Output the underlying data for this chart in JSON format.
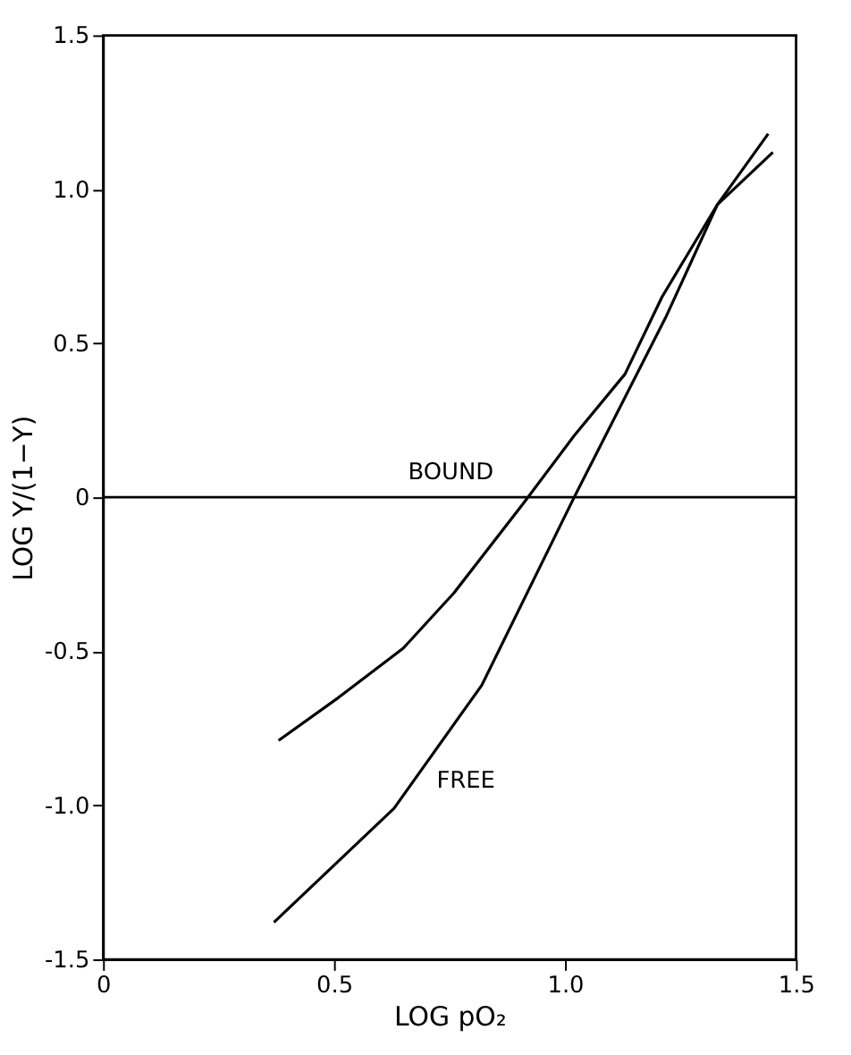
{
  "chart_data": {
    "type": "line",
    "xlabel": "LOG pO₂",
    "ylabel": "LOG Y/(1−Y)",
    "xlim": [
      0,
      1.5
    ],
    "xticks": [
      0,
      0.5,
      {
        "value": 1.0,
        "label": "1.0"
      },
      1.5
    ],
    "ylim": [
      -1.5,
      1.5
    ],
    "yticks": [
      -1.5,
      {
        "value": -1.0,
        "label": "-1.0"
      },
      -0.5,
      0,
      0.5,
      {
        "value": 1.0,
        "label": "1.0"
      },
      1.5
    ],
    "grid": false,
    "legend": false,
    "marker": "none",
    "line_style": "solid",
    "ref_lines": [
      {
        "axis": "y",
        "value": 0,
        "color": "#000000"
      }
    ],
    "series": [
      {
        "color": "#000000",
        "x": [
          0.38,
          0.51,
          0.65,
          0.76,
          0.91,
          1.02,
          1.13,
          1.21,
          1.33,
          1.45
        ],
        "values": [
          -0.79,
          -0.65,
          -0.49,
          -0.31,
          -0.02,
          0.2,
          0.4,
          0.65,
          0.95,
          1.12
        ]
      },
      {
        "color": "#000000",
        "x": [
          0.37,
          0.63,
          0.82,
          1.02,
          1.22,
          1.33,
          1.44
        ],
        "values": [
          -1.38,
          -1.01,
          -0.61,
          0.0,
          0.59,
          0.95,
          1.18
        ]
      }
    ],
    "annotations": [
      {
        "text": "BOUND",
        "x": 0.93,
        "y": 0.0
      },
      {
        "text": "FREE",
        "x": 0.63,
        "y": -1.0
      }
    ]
  }
}
